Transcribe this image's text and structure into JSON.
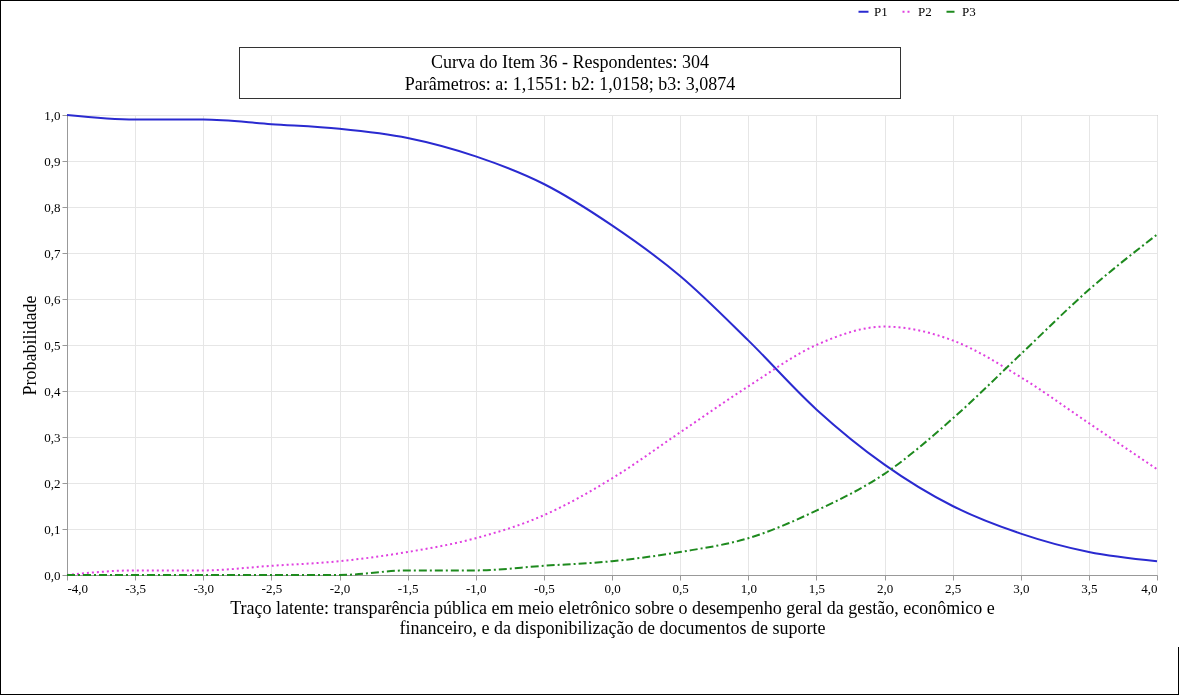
{
  "chart_data": {
    "type": "line",
    "title": [
      "Curva do Item 36 - Respondentes: 304",
      "Parâmetros: a: 1,1551: b2: 1,0158; b3: 3,0874"
    ],
    "xlabel": "Traço latente: transparência pública em meio eletrônico sobre o desempenho geral da gestão, econômico e financeiro, e da disponibilização de documentos de suporte",
    "ylabel": "Probabilidade",
    "x": [
      -4,
      -3.5,
      -3,
      -2.5,
      -2,
      -1.5,
      -1,
      -0.5,
      0,
      0.5,
      1,
      1.5,
      2,
      2.5,
      3,
      3.5,
      4
    ],
    "series": [
      {
        "name": "P1",
        "color": "#2a2ad0",
        "line_style": "solid",
        "values": [
          1.0,
          0.99,
          0.99,
          0.98,
          0.97,
          0.95,
          0.91,
          0.85,
          0.76,
          0.65,
          0.51,
          0.36,
          0.24,
          0.15,
          0.09,
          0.05,
          0.03
        ]
      },
      {
        "name": "P2",
        "color": "#e040e0",
        "line_style": "dotted",
        "values": [
          0.0,
          0.01,
          0.01,
          0.02,
          0.03,
          0.05,
          0.08,
          0.13,
          0.21,
          0.31,
          0.41,
          0.5,
          0.54,
          0.51,
          0.43,
          0.33,
          0.23
        ]
      },
      {
        "name": "P3",
        "color": "#1e8a1e",
        "line_style": "dashed",
        "values": [
          0.0,
          0.0,
          0.0,
          0.0,
          0.0,
          0.01,
          0.01,
          0.02,
          0.03,
          0.05,
          0.08,
          0.14,
          0.22,
          0.34,
          0.48,
          0.62,
          0.74
        ]
      }
    ],
    "xlim": [
      -4,
      4
    ],
    "xticks": [
      {
        "value": -4,
        "label": "-4,0"
      },
      {
        "value": -3.5,
        "label": "-3,5"
      },
      {
        "value": -3,
        "label": "-3,0"
      },
      {
        "value": -2.5,
        "label": "-2,5"
      },
      {
        "value": -2,
        "label": "-2,0"
      },
      {
        "value": -1.5,
        "label": "-1,5"
      },
      {
        "value": -1,
        "label": "-1,0"
      },
      {
        "value": -0.5,
        "label": "-0,5"
      },
      {
        "value": 0,
        "label": "0,0"
      },
      {
        "value": 0.5,
        "label": "0,5"
      },
      {
        "value": 1,
        "label": "1,0"
      },
      {
        "value": 1.5,
        "label": "1,5"
      },
      {
        "value": 2,
        "label": "2,0"
      },
      {
        "value": 2.5,
        "label": "2,5"
      },
      {
        "value": 3,
        "label": "3,0"
      },
      {
        "value": 3.5,
        "label": "3,5"
      },
      {
        "value": 4,
        "label": "4,0"
      }
    ],
    "ylim": [
      0,
      1
    ],
    "yticks": [
      {
        "value": 0,
        "label": "0,0"
      },
      {
        "value": 0.1,
        "label": "0,1"
      },
      {
        "value": 0.2,
        "label": "0,2"
      },
      {
        "value": 0.3,
        "label": "0,3"
      },
      {
        "value": 0.4,
        "label": "0,4"
      },
      {
        "value": 0.5,
        "label": "0,5"
      },
      {
        "value": 0.6,
        "label": "0,6"
      },
      {
        "value": 0.7,
        "label": "0,7"
      },
      {
        "value": 0.8,
        "label": "0,8"
      },
      {
        "value": 0.9,
        "label": "0,9"
      },
      {
        "value": 1,
        "label": "1,0"
      }
    ],
    "grid": true,
    "legend": "top right"
  }
}
